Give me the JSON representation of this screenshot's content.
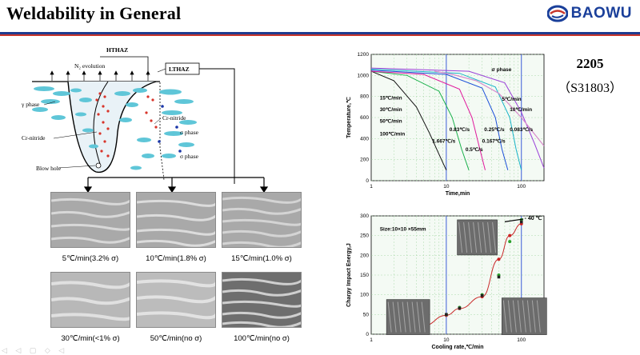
{
  "title": "Weldability in General",
  "logo": {
    "text": "BAOWU",
    "icon": "baowu-swirl-icon",
    "color": "#1a3f9a"
  },
  "grade": {
    "name": "2205",
    "uns": "（S31803）"
  },
  "schematic": {
    "hthaz": "HTHAZ",
    "lthaz": "LTHAZ",
    "n2_evolution": "N₂ evolution",
    "gamma_phase": "γ phase",
    "cr_nitride_left": "Cr-nitride",
    "cr_nitride_right": "Cr-nitride",
    "sigma_phase_1": "σ phase",
    "sigma_phase_2": "σ phase",
    "blow_hole": "Blow hole"
  },
  "micrographs": [
    {
      "caption": "5℃/min(3.2% σ)"
    },
    {
      "caption": "10℃/min(1.8% σ)"
    },
    {
      "caption": "15℃/min(1.0% σ)"
    },
    {
      "caption": "30℃/min(<1% σ)"
    },
    {
      "caption": "50℃/min(no σ)"
    },
    {
      "caption": "100℃/min(no σ)"
    }
  ],
  "chart_data": [
    {
      "type": "line",
      "title": "",
      "xlabel": "Time,min",
      "ylabel": "Temperature,℃",
      "xscale": "log",
      "xlim": [
        1,
        200
      ],
      "ylim": [
        0,
        1200
      ],
      "xticks": [
        "1",
        "10",
        "100"
      ],
      "yticks": [
        "0",
        "200",
        "400",
        "600",
        "800",
        "1000",
        "1200"
      ],
      "series": [
        {
          "name": "100℃/min",
          "x": [
            1,
            2,
            4,
            6,
            8,
            10
          ],
          "y": [
            1040,
            950,
            700,
            450,
            250,
            100
          ],
          "color": "#111111"
        },
        {
          "name": "50℃/min",
          "x": [
            1,
            3,
            8,
            12,
            16,
            20
          ],
          "y": [
            1040,
            1000,
            850,
            600,
            300,
            100
          ],
          "color": "#18b04a"
        },
        {
          "name": "30℃/min",
          "x": [
            1,
            5,
            15,
            22,
            28,
            33
          ],
          "y": [
            1040,
            1010,
            870,
            600,
            300,
            100
          ],
          "color": "#e0189c"
        },
        {
          "name": "15℃/min",
          "x": [
            1,
            10,
            30,
            45,
            55,
            66
          ],
          "y": [
            1050,
            1010,
            880,
            600,
            300,
            100
          ],
          "color": "#1a4fd8"
        },
        {
          "name": "10℃/min",
          "x": [
            1,
            15,
            45,
            70,
            85,
            100
          ],
          "y": [
            1060,
            1020,
            890,
            600,
            300,
            100
          ],
          "color": "#18b4c8"
        },
        {
          "name": "5℃/min",
          "x": [
            1,
            20,
            60,
            100,
            150,
            200
          ],
          "y": [
            1070,
            1040,
            930,
            650,
            350,
            120
          ],
          "color": "#9a3fd8"
        },
        {
          "name": "σ phase",
          "x": [
            7,
            12,
            25,
            50,
            100,
            200
          ],
          "y": [
            1040,
            1010,
            950,
            830,
            600,
            330
          ],
          "color": "#d88acd"
        }
      ],
      "annotations": [
        "σ phase",
        "15℃/min",
        "30℃/min",
        "50℃/min",
        "100℃/min",
        "5℃/min",
        "10℃/min",
        "0.83℃/s",
        "1.667℃/s",
        "0.25℃/s",
        "0.5℃/s",
        "0.167℃/s",
        "0.083℃/s"
      ],
      "grid": true
    },
    {
      "type": "scatter",
      "title": "",
      "xlabel": "Cooling rate,℃/min",
      "ylabel": "Charpy Impact Energy,J",
      "xscale": "log",
      "xlim": [
        1,
        200
      ],
      "ylim": [
        0,
        300
      ],
      "xticks": [
        "1",
        "10",
        "100"
      ],
      "yticks": [
        "0",
        "50",
        "100",
        "150",
        "200",
        "250",
        "300"
      ],
      "inset_label": "Size:10×10 ×55mm",
      "callout": "- 40 ℃",
      "series": [
        {
          "name": "",
          "x": [
            5,
            10,
            15,
            30,
            50,
            70,
            100
          ],
          "y": [
            22,
            48,
            65,
            95,
            190,
            250,
            280
          ],
          "color": "#cc2222",
          "fit": true
        },
        {
          "name": "",
          "x": [
            5,
            10,
            15,
            30,
            50,
            70,
            100
          ],
          "y": [
            25,
            50,
            68,
            100,
            150,
            235,
            290
          ],
          "color": "#2ca02c"
        },
        {
          "name": "",
          "x": [
            5,
            10,
            15,
            30,
            50,
            100
          ],
          "y": [
            22,
            50,
            66,
            98,
            145,
            285
          ],
          "color": "#222222"
        }
      ],
      "grid": true
    }
  ]
}
